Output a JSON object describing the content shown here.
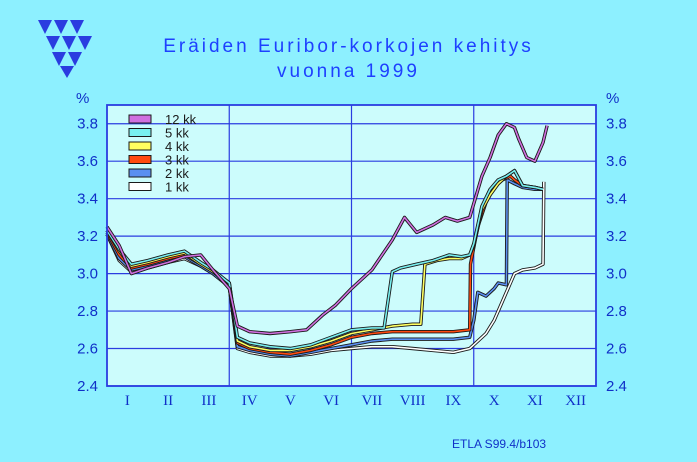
{
  "title_line1": "Eräiden Euribor-korkojen kehitys",
  "title_line2": "vuonna 1999",
  "unit_left": "%",
  "unit_right": "%",
  "credit": "ETLA S99.4/b103",
  "logo_icon": "etla-triangles-logo",
  "colors": {
    "background": "#8df0ff",
    "plot_background": "#ccfcfc",
    "grid": "#2a3ce0",
    "axis_text": "#1030c8",
    "title": "#1e40ff"
  },
  "chart_data": {
    "type": "line",
    "title": "Eräiden Euribor-korkojen kehitys vuonna 1999",
    "xlabel": "",
    "ylabel": "%",
    "ylim": [
      2.4,
      3.9
    ],
    "yticks": [
      2.4,
      2.6,
      2.8,
      3.0,
      3.2,
      3.4,
      3.6,
      3.8
    ],
    "ytick_labels": [
      "2.4",
      "2.6",
      "2.8",
      "3.0",
      "3.2",
      "3.4",
      "3.6",
      "3.8"
    ],
    "x_domain": [
      0,
      12
    ],
    "categories": [
      "I",
      "II",
      "III",
      "IV",
      "V",
      "VI",
      "VII",
      "VIII",
      "IX",
      "X",
      "XI",
      "XII"
    ],
    "grid": true,
    "legend_position": "top-left",
    "series": [
      {
        "name": "12 kk",
        "color": "#d070e0",
        "x": [
          0.0,
          0.3,
          0.6,
          1.0,
          1.5,
          1.9,
          2.3,
          2.6,
          3.0,
          3.2,
          3.5,
          4.0,
          4.5,
          4.9,
          5.3,
          5.6,
          6.0,
          6.5,
          7.0,
          7.3,
          7.6,
          8.0,
          8.3,
          8.6,
          8.9,
          9.2,
          9.4,
          9.6,
          9.8,
          10.0,
          10.1,
          10.3,
          10.5,
          10.7,
          10.8
        ],
        "y": [
          3.25,
          3.15,
          3.0,
          3.03,
          3.06,
          3.09,
          3.1,
          3.02,
          2.92,
          2.72,
          2.69,
          2.68,
          2.69,
          2.7,
          2.78,
          2.83,
          2.92,
          3.02,
          3.18,
          3.3,
          3.22,
          3.26,
          3.3,
          3.28,
          3.3,
          3.52,
          3.62,
          3.74,
          3.8,
          3.78,
          3.72,
          3.62,
          3.6,
          3.7,
          3.79
        ]
      },
      {
        "name": "5 kk",
        "color": "#78f0f0",
        "x": [
          0.0,
          0.3,
          0.6,
          1.0,
          1.5,
          1.9,
          2.3,
          2.6,
          3.0,
          3.2,
          3.5,
          4.0,
          4.5,
          5.0,
          5.5,
          6.0,
          6.5,
          6.8,
          7.0,
          7.2,
          7.6,
          8.0,
          8.4,
          8.7,
          8.9,
          9.0,
          9.2,
          9.4,
          9.6,
          9.8,
          10.0,
          10.2,
          10.5,
          10.7
        ],
        "y": [
          3.23,
          3.13,
          3.05,
          3.07,
          3.1,
          3.12,
          3.06,
          3.02,
          2.95,
          2.66,
          2.63,
          2.61,
          2.6,
          2.62,
          2.66,
          2.7,
          2.71,
          2.71,
          3.01,
          3.03,
          3.05,
          3.07,
          3.1,
          3.09,
          3.1,
          3.16,
          3.36,
          3.45,
          3.5,
          3.52,
          3.55,
          3.47,
          3.46,
          3.45
        ]
      },
      {
        "name": "4 kk",
        "color": "#ffff60",
        "x": [
          0.0,
          0.3,
          0.6,
          1.0,
          1.5,
          1.9,
          2.3,
          2.6,
          3.0,
          3.2,
          3.5,
          4.0,
          4.5,
          5.0,
          5.5,
          6.0,
          6.5,
          7.0,
          7.5,
          7.7,
          7.8,
          8.1,
          8.4,
          8.7,
          8.9,
          9.0,
          9.2,
          9.4,
          9.6,
          9.8,
          10.0,
          10.2,
          10.5,
          10.7
        ],
        "y": [
          3.23,
          3.12,
          3.04,
          3.06,
          3.09,
          3.11,
          3.05,
          3.01,
          2.95,
          2.64,
          2.61,
          2.59,
          2.59,
          2.61,
          2.64,
          2.68,
          2.7,
          2.72,
          2.73,
          2.73,
          3.05,
          3.07,
          3.08,
          3.08,
          3.1,
          3.15,
          3.34,
          3.42,
          3.48,
          3.52,
          3.55,
          3.47,
          3.46,
          3.45
        ]
      },
      {
        "name": "3 kk",
        "color": "#ff4a10",
        "x": [
          0.0,
          0.3,
          0.6,
          1.0,
          1.5,
          1.9,
          2.3,
          2.6,
          3.0,
          3.2,
          3.5,
          4.0,
          4.5,
          5.0,
          5.5,
          6.0,
          6.5,
          7.0,
          7.5,
          8.0,
          8.5,
          8.9,
          8.92,
          9.1,
          9.3,
          9.5,
          9.7,
          9.9,
          10.0,
          10.2,
          10.5,
          10.7
        ],
        "y": [
          3.22,
          3.1,
          3.03,
          3.05,
          3.08,
          3.1,
          3.05,
          3.01,
          2.94,
          2.63,
          2.6,
          2.58,
          2.57,
          2.59,
          2.62,
          2.66,
          2.68,
          2.69,
          2.69,
          2.69,
          2.69,
          2.7,
          3.05,
          3.25,
          3.38,
          3.46,
          3.5,
          3.52,
          3.5,
          3.47,
          3.46,
          3.45
        ]
      },
      {
        "name": "2 kk",
        "color": "#5a8ff0",
        "x": [
          0.0,
          0.3,
          0.6,
          1.0,
          1.5,
          1.9,
          2.3,
          2.6,
          3.0,
          3.2,
          3.5,
          4.0,
          4.5,
          5.0,
          5.5,
          6.0,
          6.5,
          7.0,
          7.5,
          8.0,
          8.5,
          8.9,
          9.0,
          9.1,
          9.3,
          9.5,
          9.6,
          9.8,
          9.82,
          10.0,
          10.2,
          10.5,
          10.7
        ],
        "y": [
          3.21,
          3.08,
          3.02,
          3.04,
          3.07,
          3.09,
          3.04,
          3.0,
          2.93,
          2.61,
          2.59,
          2.57,
          2.56,
          2.58,
          2.6,
          2.62,
          2.64,
          2.65,
          2.65,
          2.65,
          2.65,
          2.66,
          2.75,
          2.9,
          2.88,
          2.92,
          2.95,
          2.94,
          3.5,
          3.48,
          3.46,
          3.45,
          3.45
        ]
      },
      {
        "name": "1 kk",
        "color": "#ffffff",
        "x": [
          0.0,
          0.3,
          0.6,
          1.0,
          1.5,
          1.9,
          2.3,
          2.6,
          3.0,
          3.2,
          3.5,
          4.0,
          4.5,
          5.0,
          5.5,
          6.0,
          6.5,
          7.0,
          7.5,
          8.0,
          8.5,
          8.9,
          9.0,
          9.3,
          9.5,
          9.7,
          9.9,
          10.0,
          10.2,
          10.5,
          10.7,
          10.72
        ],
        "y": [
          3.21,
          3.07,
          3.01,
          3.03,
          3.06,
          3.08,
          3.04,
          3.0,
          2.93,
          2.6,
          2.58,
          2.56,
          2.56,
          2.57,
          2.59,
          2.6,
          2.61,
          2.61,
          2.6,
          2.59,
          2.58,
          2.6,
          2.62,
          2.68,
          2.75,
          2.85,
          2.95,
          3.0,
          3.02,
          3.03,
          3.05,
          3.49
        ]
      }
    ]
  }
}
